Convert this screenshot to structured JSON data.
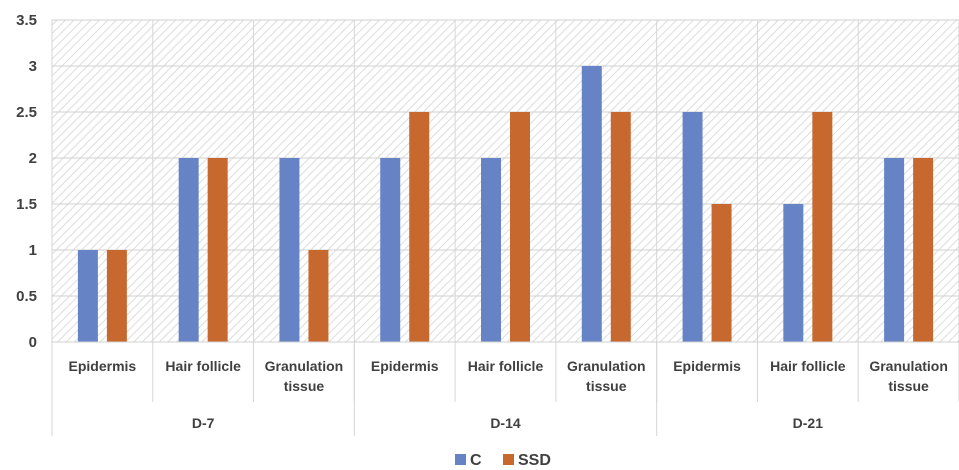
{
  "chart_data": {
    "type": "bar",
    "title": "",
    "xlabel": "",
    "ylabel": "",
    "ylim": [
      0,
      3.5
    ],
    "yticks": [
      "0",
      "0.5",
      "1",
      "1.5",
      "2",
      "2.5",
      "3",
      "3.5"
    ],
    "grid": true,
    "legend_position": "bottom",
    "groups": [
      {
        "label": "D-7",
        "categories": [
          [
            "Epidermis"
          ],
          [
            "Hair follicle"
          ],
          [
            "Granulation",
            "tissue"
          ]
        ]
      },
      {
        "label": "D-14",
        "categories": [
          [
            "Epidermis"
          ],
          [
            "Hair follicle"
          ],
          [
            "Granulation",
            "tissue"
          ]
        ]
      },
      {
        "label": "D-21",
        "categories": [
          [
            "Epidermis"
          ],
          [
            "Hair follicle"
          ],
          [
            "Granulation",
            "tissue"
          ]
        ]
      }
    ],
    "series": [
      {
        "name": "C",
        "color": "#6683c6",
        "values": [
          1,
          2,
          2,
          2,
          2,
          3,
          2.5,
          1.5,
          2
        ]
      },
      {
        "name": "SSD",
        "color": "#c7692f",
        "values": [
          1,
          2,
          1,
          2.5,
          2.5,
          2.5,
          1.5,
          2.5,
          2
        ]
      }
    ]
  }
}
